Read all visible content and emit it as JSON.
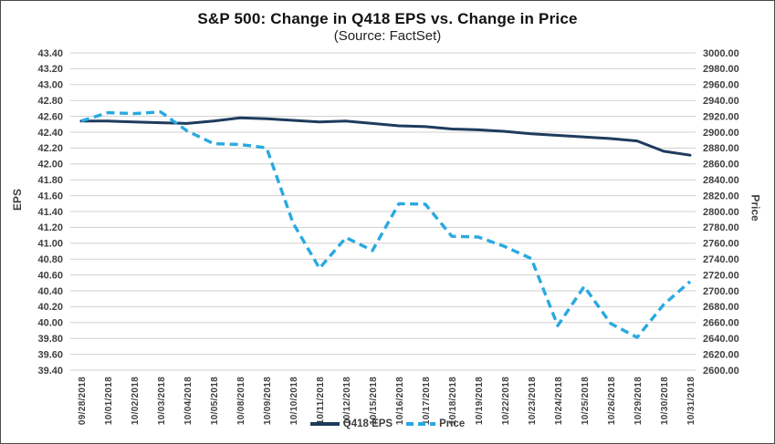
{
  "title": "S&P 500: Change in Q418 EPS vs. Change in Price",
  "subtitle": "(Source: FactSet)",
  "chart_data": {
    "type": "line",
    "grid": "horizontal",
    "grid_color": "#cfcfcf",
    "legend_position": "bottom",
    "categories": [
      "09/28/2018",
      "10/01/2018",
      "10/02/2018",
      "10/03/2018",
      "10/04/2018",
      "10/05/2018",
      "10/08/2018",
      "10/09/2018",
      "10/10/2018",
      "10/11/2018",
      "10/12/2018",
      "10/15/2018",
      "10/16/2018",
      "10/17/2018",
      "10/18/2018",
      "10/19/2018",
      "10/22/2018",
      "10/23/2018",
      "10/24/2018",
      "10/25/2018",
      "10/26/2018",
      "10/29/2018",
      "10/30/2018",
      "10/31/2018"
    ],
    "series": [
      {
        "name": "Q418 EPS",
        "axis": "left",
        "line_style": "solid",
        "color": "#1F3B5D",
        "values": [
          42.54,
          42.54,
          42.53,
          42.52,
          42.51,
          42.54,
          42.58,
          42.57,
          42.55,
          42.53,
          42.54,
          42.51,
          42.48,
          42.47,
          42.44,
          42.43,
          42.41,
          42.38,
          42.36,
          42.34,
          42.32,
          42.29,
          42.16,
          42.11
        ]
      },
      {
        "name": "Price",
        "axis": "right",
        "line_style": "dashed",
        "color": "#29A9E0",
        "values": [
          2913.98,
          2924.59,
          2923.43,
          2925.51,
          2901.61,
          2885.57,
          2884.43,
          2880.34,
          2785.68,
          2728.37,
          2767.13,
          2750.79,
          2809.92,
          2809.21,
          2768.78,
          2767.78,
          2755.88,
          2740.69,
          2656.1,
          2705.57,
          2658.69,
          2641.25,
          2682.63,
          2711.74
        ]
      }
    ],
    "left_axis": {
      "label": "EPS",
      "min": 39.4,
      "max": 43.4,
      "step": 0.2,
      "ticks": [
        "43.40",
        "43.20",
        "43.00",
        "42.80",
        "42.60",
        "42.40",
        "42.20",
        "42.00",
        "41.80",
        "41.60",
        "41.40",
        "41.20",
        "41.00",
        "40.80",
        "40.60",
        "40.40",
        "40.20",
        "40.00",
        "39.80",
        "39.60",
        "39.40"
      ]
    },
    "right_axis": {
      "label": "Price",
      "min": 2600.0,
      "max": 3000.0,
      "step": 20.0,
      "ticks": [
        "3000.00",
        "2980.00",
        "2960.00",
        "2940.00",
        "2920.00",
        "2900.00",
        "2880.00",
        "2860.00",
        "2840.00",
        "2820.00",
        "2800.00",
        "2780.00",
        "2760.00",
        "2740.00",
        "2720.00",
        "2700.00",
        "2680.00",
        "2660.00",
        "2640.00",
        "2620.00",
        "2600.00"
      ]
    }
  }
}
